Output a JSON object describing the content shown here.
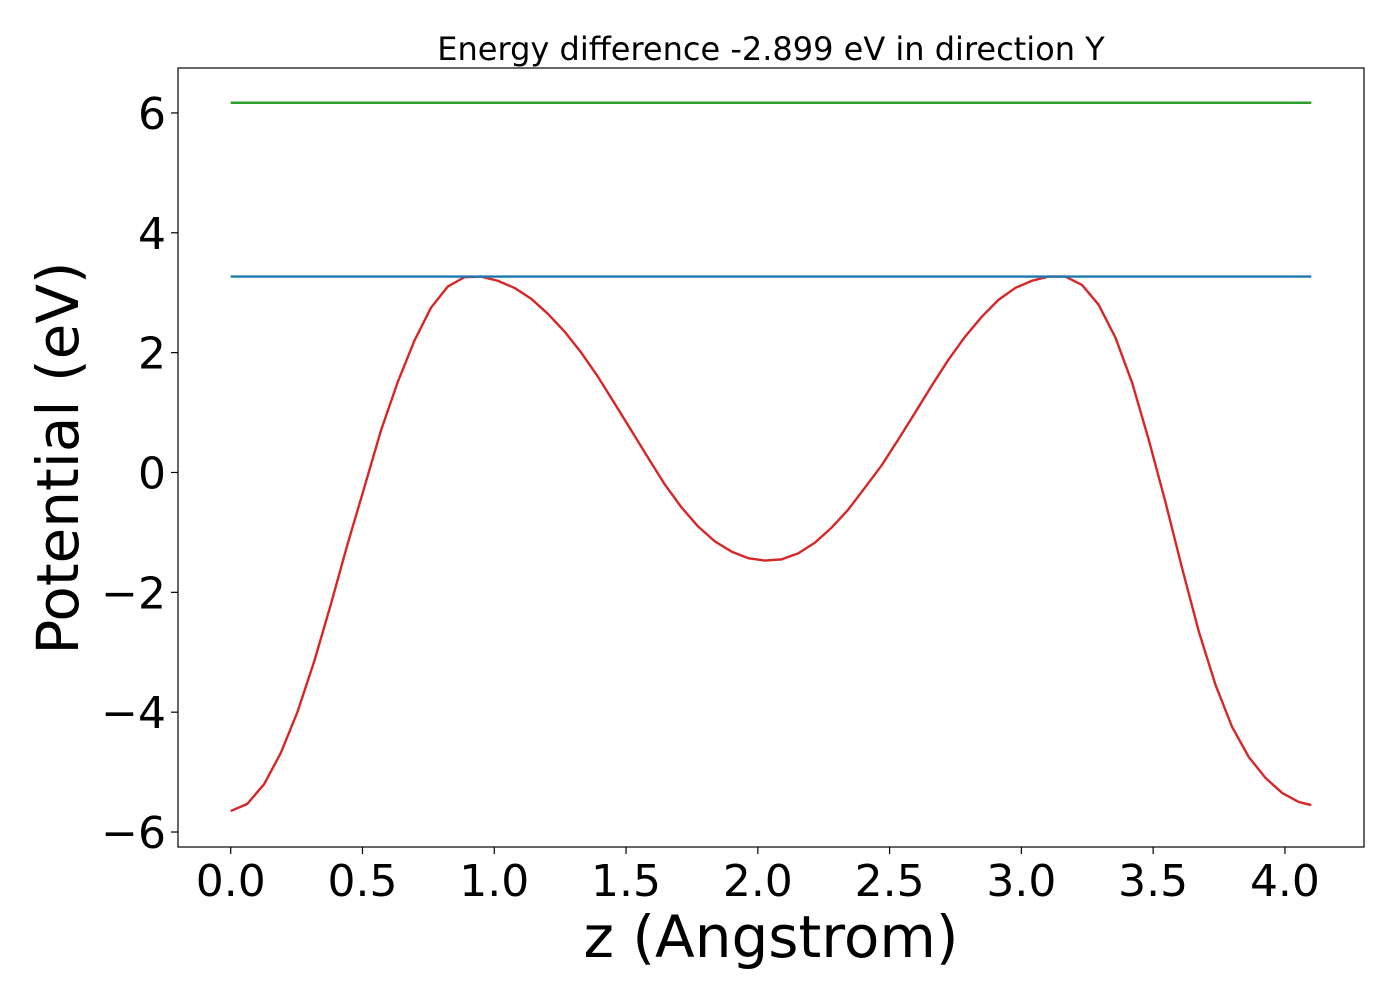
{
  "chart_data": {
    "type": "line",
    "title": "Energy difference -2.899 eV in direction Y",
    "xlabel": "z (Angstrom)",
    "ylabel": "Potential (eV)",
    "xlim": [
      -0.2,
      4.3
    ],
    "ylim": [
      -6.25,
      6.75
    ],
    "xticks": [
      0.0,
      0.5,
      1.0,
      1.5,
      2.0,
      2.5,
      3.0,
      3.5,
      4.0
    ],
    "xtick_labels": [
      "0.0",
      "0.5",
      "1.0",
      "1.5",
      "2.0",
      "2.5",
      "3.0",
      "3.5",
      "4.0"
    ],
    "yticks": [
      -6,
      -4,
      -2,
      0,
      2,
      4,
      6
    ],
    "ytick_labels": [
      "−6",
      "−4",
      "−2",
      "0",
      "2",
      "4",
      "6"
    ],
    "grid": false,
    "series": [
      {
        "color": "#d62728",
        "x": [
          0.0,
          0.063,
          0.127,
          0.19,
          0.253,
          0.317,
          0.38,
          0.443,
          0.507,
          0.57,
          0.633,
          0.697,
          0.76,
          0.823,
          0.887,
          0.95,
          1.013,
          1.077,
          1.14,
          1.203,
          1.267,
          1.33,
          1.393,
          1.457,
          1.52,
          1.583,
          1.647,
          1.71,
          1.773,
          1.837,
          1.9,
          1.963,
          2.027,
          2.09,
          2.153,
          2.217,
          2.28,
          2.343,
          2.407,
          2.47,
          2.533,
          2.597,
          2.66,
          2.723,
          2.787,
          2.85,
          2.913,
          2.977,
          3.04,
          3.103,
          3.167,
          3.23,
          3.293,
          3.357,
          3.42,
          3.483,
          3.547,
          3.61,
          3.673,
          3.737,
          3.8,
          3.863,
          3.927,
          3.99,
          4.053,
          4.1
        ],
        "y": [
          -5.65,
          -5.53,
          -5.2,
          -4.68,
          -4.0,
          -3.15,
          -2.2,
          -1.2,
          -0.25,
          0.7,
          1.5,
          2.2,
          2.75,
          3.1,
          3.26,
          3.27,
          3.2,
          3.08,
          2.9,
          2.65,
          2.35,
          2.0,
          1.6,
          1.15,
          0.7,
          0.25,
          -0.2,
          -0.58,
          -0.9,
          -1.15,
          -1.32,
          -1.43,
          -1.47,
          -1.45,
          -1.35,
          -1.17,
          -0.92,
          -0.62,
          -0.25,
          0.12,
          0.55,
          1.0,
          1.45,
          1.88,
          2.27,
          2.6,
          2.88,
          3.08,
          3.2,
          3.27,
          3.27,
          3.13,
          2.8,
          2.25,
          1.5,
          0.55,
          -0.5,
          -1.6,
          -2.65,
          -3.55,
          -4.25,
          -4.75,
          -5.1,
          -5.35,
          -5.5,
          -5.55
        ]
      },
      {
        "color": "#1f77b4",
        "x": [
          0.0,
          4.1
        ],
        "y": [
          3.27,
          3.27
        ]
      },
      {
        "color": "#2ca02c",
        "x": [
          0.0,
          4.1
        ],
        "y": [
          6.17,
          6.17
        ]
      }
    ]
  }
}
